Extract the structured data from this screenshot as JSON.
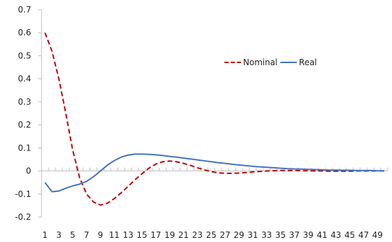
{
  "chart_data": {
    "type": "line",
    "title": "",
    "xlabel": "",
    "ylabel": "",
    "x": [
      1,
      2,
      3,
      4,
      5,
      6,
      7,
      8,
      9,
      10,
      11,
      12,
      13,
      14,
      15,
      16,
      17,
      18,
      19,
      20,
      21,
      22,
      23,
      24,
      25,
      26,
      27,
      28,
      29,
      30,
      31,
      32,
      33,
      34,
      35,
      36,
      37,
      38,
      39,
      40,
      41,
      42,
      43,
      44,
      45,
      46,
      47,
      48,
      49,
      50
    ],
    "x_tick_labels": [
      "1",
      "3",
      "5",
      "7",
      "9",
      "11",
      "13",
      "15",
      "17",
      "19",
      "21",
      "23",
      "25",
      "27",
      "29",
      "31",
      "33",
      "35",
      "37",
      "39",
      "41",
      "43",
      "45",
      "47",
      "49"
    ],
    "y_tick_labels": [
      "-0.2",
      "-0.1",
      "0",
      "0.1",
      "0.2",
      "0.3",
      "0.4",
      "0.5",
      "0.6",
      "0.7"
    ],
    "ylim": [
      -0.2,
      0.7
    ],
    "grid": false,
    "legend_position": "upper-right",
    "series": [
      {
        "name": "Nominal",
        "color": "#c00000",
        "dash": "dashed",
        "values": [
          0.6,
          0.52,
          0.4,
          0.25,
          0.09,
          -0.03,
          -0.1,
          -0.135,
          -0.148,
          -0.14,
          -0.12,
          -0.095,
          -0.067,
          -0.038,
          -0.012,
          0.012,
          0.03,
          0.04,
          0.043,
          0.04,
          0.033,
          0.024,
          0.014,
          0.005,
          -0.003,
          -0.008,
          -0.01,
          -0.01,
          -0.009,
          -0.007,
          -0.004,
          -0.002,
          0.0,
          0.001,
          0.002,
          0.002,
          0.002,
          0.001,
          0.001,
          0.0,
          0.0,
          -0.001,
          -0.001,
          -0.001,
          -0.001,
          0.0,
          0.0,
          0.0,
          0.0,
          0.0
        ]
      },
      {
        "name": "Real",
        "color": "#4472c4",
        "dash": "solid",
        "values": [
          -0.05,
          -0.09,
          -0.087,
          -0.075,
          -0.065,
          -0.057,
          -0.045,
          -0.025,
          0.0,
          0.025,
          0.045,
          0.06,
          0.069,
          0.073,
          0.073,
          0.072,
          0.07,
          0.067,
          0.063,
          0.06,
          0.056,
          0.052,
          0.048,
          0.044,
          0.04,
          0.036,
          0.033,
          0.029,
          0.026,
          0.023,
          0.02,
          0.018,
          0.016,
          0.014,
          0.012,
          0.01,
          0.009,
          0.008,
          0.007,
          0.006,
          0.005,
          0.004,
          0.004,
          0.003,
          0.003,
          0.002,
          0.002,
          0.002,
          0.001,
          0.001
        ]
      }
    ]
  }
}
